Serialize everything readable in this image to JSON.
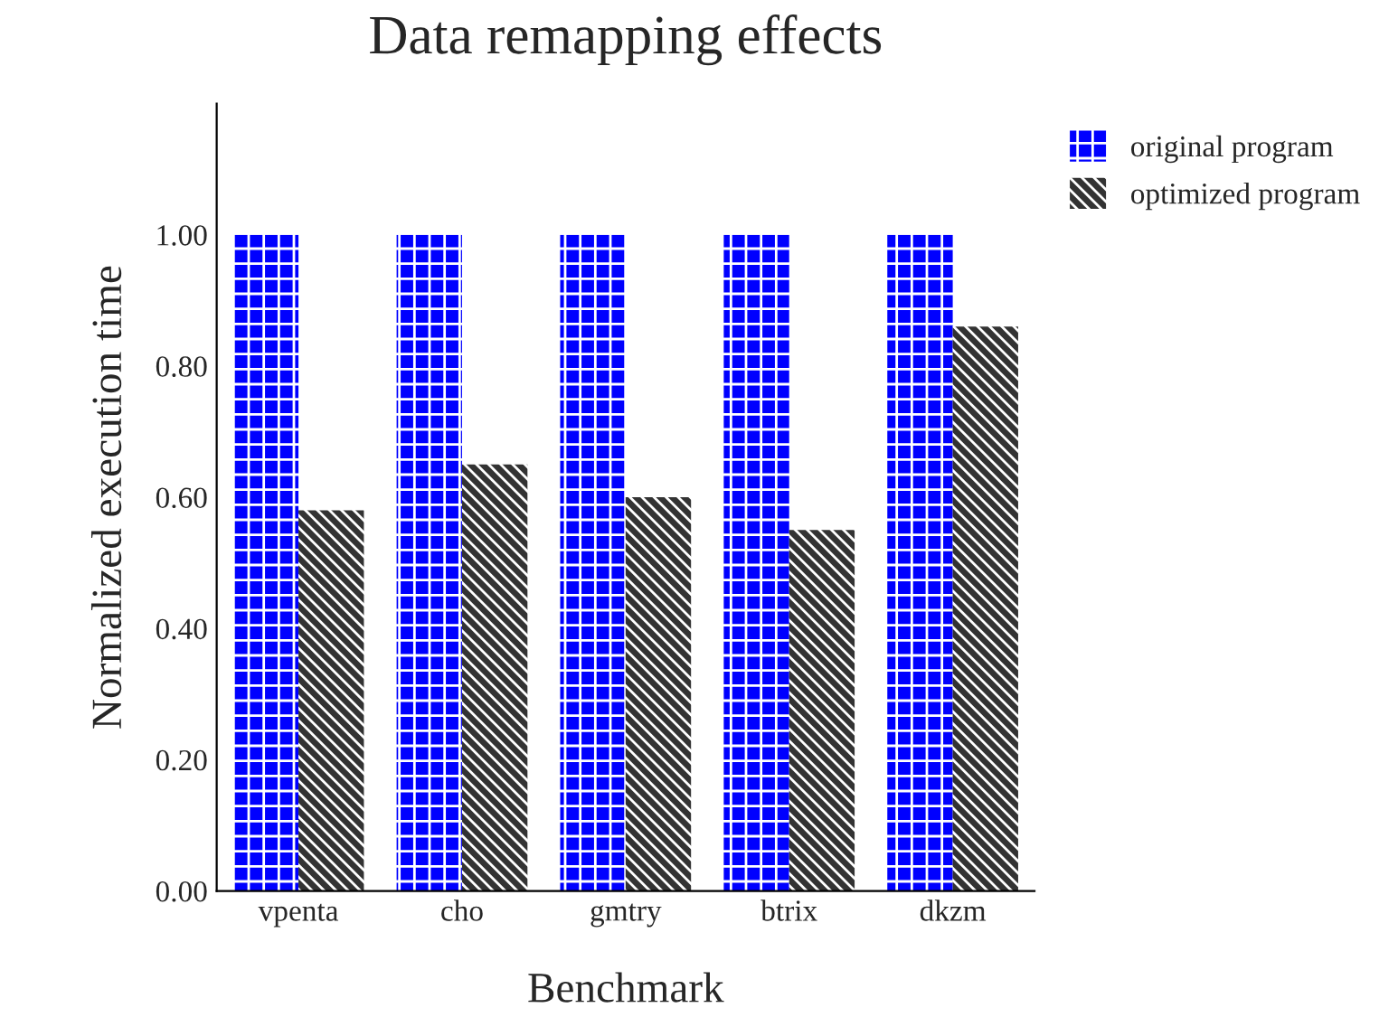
{
  "chart_data": {
    "type": "bar",
    "title": "Data remapping effects",
    "xlabel": "Benchmark",
    "ylabel": "Normalized execution time",
    "categories": [
      "vpenta",
      "cho",
      "gmtry",
      "btrix",
      "dkzm"
    ],
    "series": [
      {
        "name": "original program",
        "color": "#0000ff",
        "values": [
          1.0,
          1.0,
          1.0,
          1.0,
          1.0
        ]
      },
      {
        "name": "optimized program",
        "color": "#333333",
        "values": [
          0.58,
          0.65,
          0.6,
          0.55,
          0.86
        ]
      }
    ],
    "ylim": [
      0,
      1.2
    ],
    "yticks": [
      {
        "value": 0,
        "label": "0.00"
      },
      {
        "value": 0.2,
        "label": "0.20"
      },
      {
        "value": 0.4,
        "label": "0.40"
      },
      {
        "value": 0.6,
        "label": "0.60"
      },
      {
        "value": 0.8,
        "label": "0.80"
      },
      {
        "value": 1.0,
        "label": "1.00"
      }
    ],
    "grid": false,
    "legend": "top right"
  }
}
